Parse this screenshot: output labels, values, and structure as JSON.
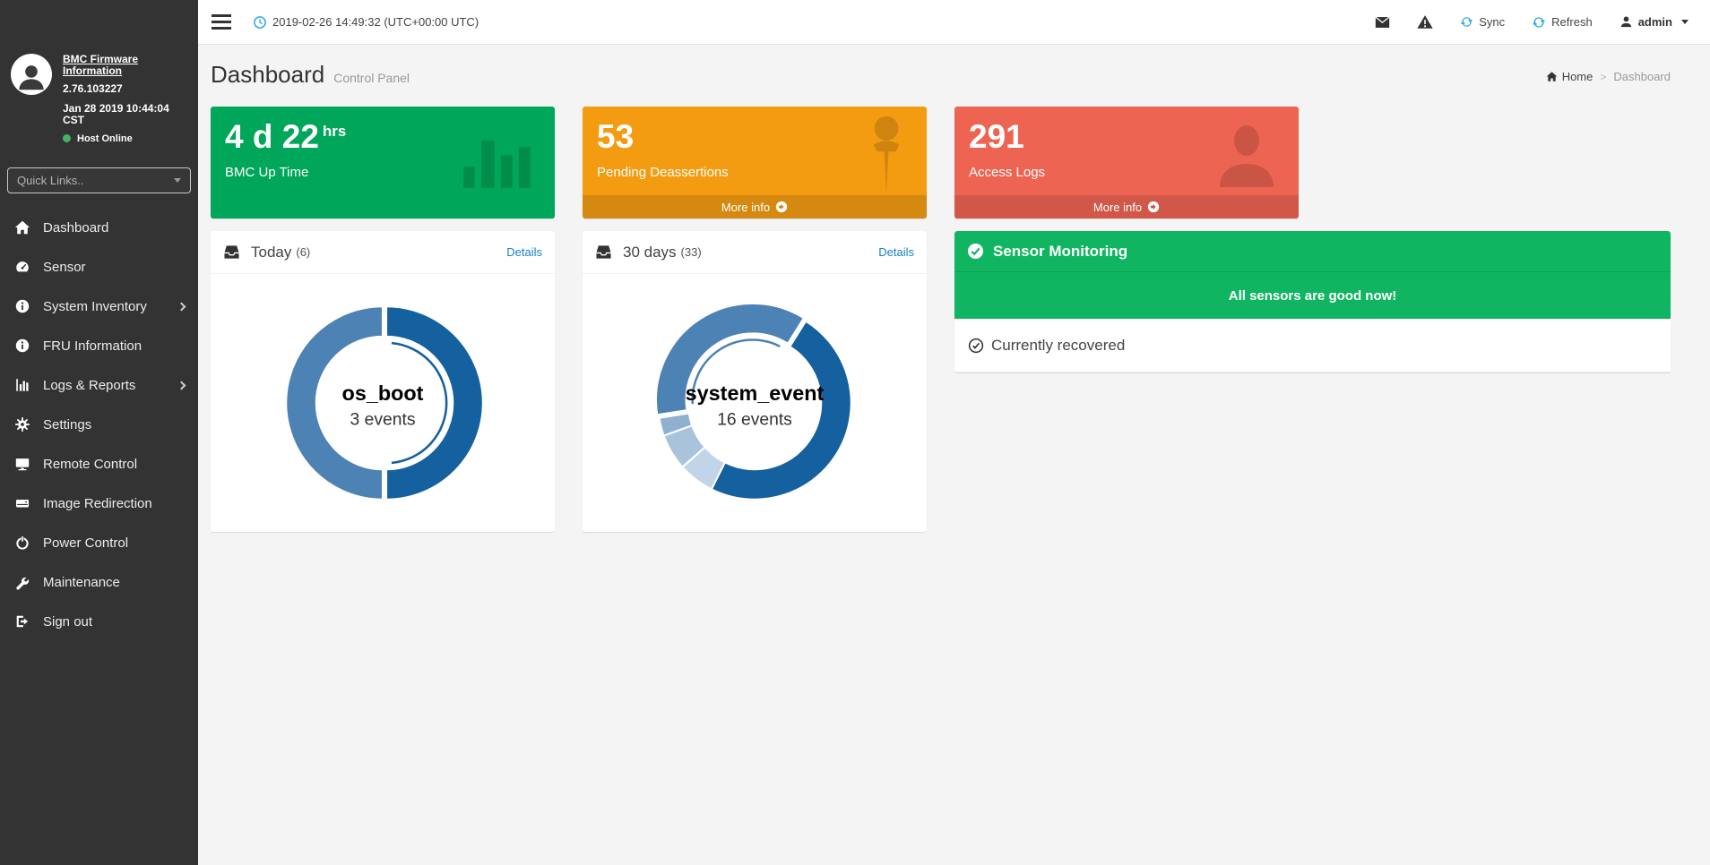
{
  "topbar": {
    "timestamp": "2019-02-26 14:49:32 (UTC+00:00 UTC)",
    "sync_label": "Sync",
    "refresh_label": "Refresh",
    "username": "admin",
    "accent_blue": "#2aa9e0"
  },
  "sidebar": {
    "firmware_info_link": "BMC Firmware Information",
    "firmware_version": "2.76.103227",
    "firmware_date": "Jan 28 2019 10:44:04 CST",
    "host_status": "Host Online",
    "host_status_color": "#44b461",
    "quick_links_placeholder": "Quick Links..",
    "items": [
      {
        "label": "Dashboard"
      },
      {
        "label": "Sensor"
      },
      {
        "label": "System Inventory",
        "has_submenu": true
      },
      {
        "label": "FRU Information"
      },
      {
        "label": "Logs & Reports",
        "has_submenu": true
      },
      {
        "label": "Settings"
      },
      {
        "label": "Remote Control"
      },
      {
        "label": "Image Redirection"
      },
      {
        "label": "Power Control"
      },
      {
        "label": "Maintenance"
      },
      {
        "label": "Sign out"
      }
    ]
  },
  "page": {
    "title": "Dashboard",
    "subtitle": "Control Panel",
    "breadcrumb": {
      "home": "Home",
      "separator": ">",
      "current": "Dashboard"
    }
  },
  "cards": [
    {
      "value": "4 d 22",
      "suffix": "hrs",
      "label": "BMC Up Time",
      "color": "#00a65a"
    },
    {
      "value": "53",
      "label": "Pending Deassertions",
      "color": "#f39c12",
      "footer_label": "More info"
    },
    {
      "value": "291",
      "label": "Access Logs",
      "color": "#ee6452",
      "footer_label": "More info"
    }
  ],
  "event_panels": [
    {
      "title": "Today",
      "count": "(6)",
      "details_label": "Details"
    },
    {
      "title": "30 days",
      "count": "(33)",
      "details_label": "Details"
    }
  ],
  "sensor_panel": {
    "title": "Sensor Monitoring",
    "color": "#10b561",
    "message": "All sensors are good now!",
    "status": "Currently recovered"
  },
  "chart_data": [
    {
      "type": "pie",
      "subtype": "donut",
      "title": "Today",
      "total_events": 6,
      "center_title": "os_boot",
      "center_sub": "3 events",
      "start_angle": 0,
      "slices": [
        {
          "name": "os_boot",
          "value": 3,
          "color": "#15609f",
          "selected": true
        },
        {
          "value": 3,
          "color": "#4d82b4"
        }
      ]
    },
    {
      "type": "pie",
      "subtype": "donut",
      "title": "30 days",
      "total_events": 33,
      "center_title": "system_event",
      "center_sub": "16 events",
      "start_angle": 32,
      "slices": [
        {
          "name": "system_event",
          "value": 16,
          "color": "#15609f"
        },
        {
          "value": 2,
          "color": "#c2d5e8"
        },
        {
          "value": 2,
          "color": "#a9c3dd"
        },
        {
          "value": 1,
          "color": "#8fb0d1"
        },
        {
          "value": 12,
          "color": "#4d82b4",
          "selected": true
        }
      ]
    }
  ]
}
